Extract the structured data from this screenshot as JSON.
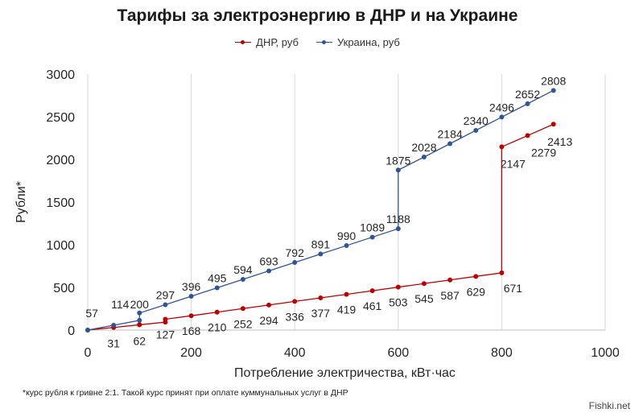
{
  "chart_data": {
    "type": "line",
    "title": "Тарифы за электроэнергию в ДНР и на Украине",
    "xlabel": "Потребление электричества, кВт·час",
    "ylabel": "Рубли*",
    "xlim": [
      0,
      1000
    ],
    "ylim": [
      0,
      3000
    ],
    "x_ticks": [
      "0",
      "200",
      "400",
      "600",
      "800",
      "1000"
    ],
    "y_ticks": [
      "0",
      "500",
      "1000",
      "1500",
      "2000",
      "2500",
      "3000"
    ],
    "grid": "vertical",
    "legend_position": "top",
    "series": [
      {
        "name": "ДНР, руб",
        "color": "#c00000",
        "x": [
          0,
          50,
          100,
          100,
          150,
          150,
          200,
          250,
          300,
          350,
          400,
          450,
          500,
          550,
          600,
          650,
          700,
          750,
          800,
          800,
          850,
          900
        ],
        "y": [
          0,
          31,
          62,
          62,
          93,
          127,
          168,
          210,
          252,
          294,
          336,
          377,
          419,
          461,
          503,
          545,
          587,
          629,
          671,
          2147,
          2279,
          2413
        ],
        "labels": [
          "",
          "31",
          "62",
          "",
          "",
          "127",
          "168",
          "210",
          "252",
          "294",
          "336",
          "377",
          "419",
          "461",
          "503",
          "545",
          "587",
          "629",
          "671",
          "2147",
          "2279",
          "2413"
        ]
      },
      {
        "name": "Украина, руб",
        "color": "#2f5597",
        "x": [
          0,
          50,
          100,
          100,
          150,
          200,
          250,
          300,
          350,
          400,
          450,
          500,
          550,
          600,
          600,
          650,
          700,
          750,
          800,
          850,
          900
        ],
        "y": [
          0,
          57,
          114,
          200,
          297,
          396,
          495,
          594,
          693,
          792,
          891,
          990,
          1089,
          1188,
          1875,
          2028,
          2184,
          2340,
          2496,
          2652,
          2808
        ],
        "labels": [
          "",
          "57",
          "114",
          "200",
          "297",
          "396",
          "495",
          "594",
          "693",
          "792",
          "891",
          "990",
          "1089",
          "1188",
          "1875",
          "2028",
          "2184",
          "2340",
          "2496",
          "2652",
          "2808"
        ]
      }
    ]
  },
  "footnote": "*курс рубля к гривне 2:1. Такой курс принят при оплате куммунальных услуг в ДНР",
  "watermark": "Fishki.net"
}
